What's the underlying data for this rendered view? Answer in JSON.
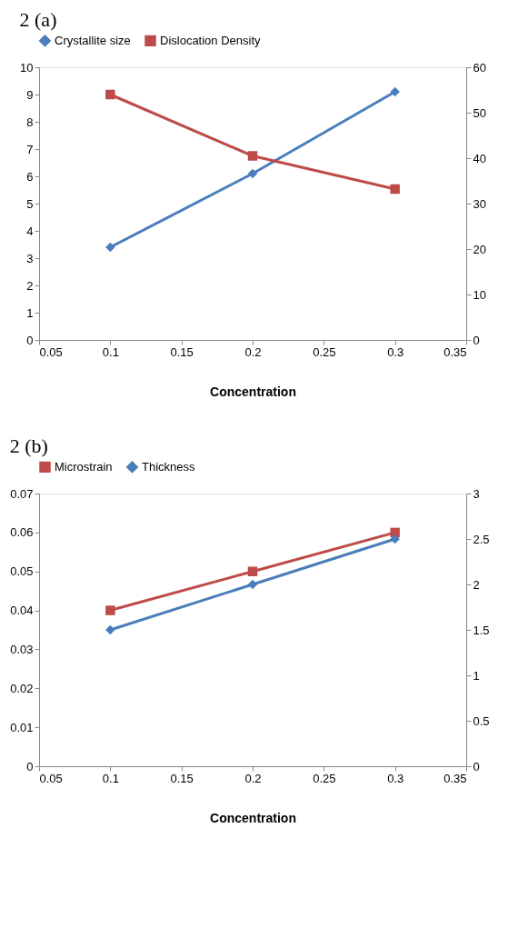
{
  "chart_data": [
    {
      "type": "line",
      "title": "2 (a)",
      "xlabel": "Concentration",
      "x": [
        0.1,
        0.2,
        0.3
      ],
      "xlim": [
        0.05,
        0.35
      ],
      "xticks": [
        0.05,
        0.1,
        0.15,
        0.2,
        0.25,
        0.3,
        0.35
      ],
      "ylim": [
        0,
        10
      ],
      "yticks": [
        0,
        1,
        2,
        3,
        4,
        5,
        6,
        7,
        8,
        9,
        10
      ],
      "y2lim": [
        0,
        60
      ],
      "y2ticks": [
        0,
        10,
        20,
        30,
        40,
        50,
        60
      ],
      "grid": false,
      "legend": "top",
      "line_style": "solid",
      "series": [
        {
          "name": "Crystallite size",
          "color": "#4a7ebb",
          "values": [
            3.4,
            6.1,
            9.1
          ],
          "marker": "diamond"
        },
        {
          "name": "Dislocation Density",
          "color": "#be4b48",
          "values": [
            54,
            40.5,
            33.2
          ],
          "axis": "y2",
          "marker": "square"
        }
      ]
    },
    {
      "type": "line",
      "title": "2 (b)",
      "xlabel": "Concentration",
      "x": [
        0.1,
        0.2,
        0.3
      ],
      "xlim": [
        0.05,
        0.35
      ],
      "xticks": [
        0.05,
        0.1,
        0.15,
        0.2,
        0.25,
        0.3,
        0.35
      ],
      "ylim": [
        0,
        0.07
      ],
      "yticks": [
        0,
        0.01,
        0.02,
        0.03,
        0.04,
        0.05,
        0.06,
        0.07
      ],
      "y2lim": [
        0,
        3
      ],
      "y2ticks": [
        0,
        0.5,
        1,
        1.5,
        2,
        2.5,
        3
      ],
      "grid": false,
      "legend": "top",
      "line_style": "solid",
      "series": [
        {
          "name": "Microstrain",
          "color": "#be4b48",
          "values": [
            0.04,
            0.05,
            0.06
          ],
          "marker": "square"
        },
        {
          "name": "Thickness",
          "color": "#4a7ebb",
          "values": [
            1.5,
            2.0,
            2.5
          ],
          "axis": "y2",
          "marker": "diamond"
        }
      ]
    }
  ]
}
